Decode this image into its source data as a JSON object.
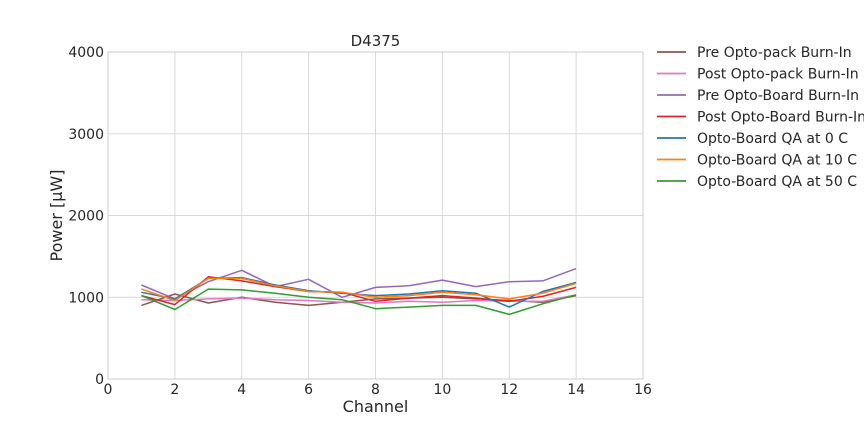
{
  "chart_data": {
    "type": "line",
    "title": "D4375",
    "xlabel": "Channel",
    "ylabel": "Power [μW]",
    "xlim": [
      0,
      16
    ],
    "ylim": [
      0,
      4000
    ],
    "xticks": [
      "0",
      "2",
      "4",
      "6",
      "8",
      "10",
      "12",
      "14",
      "16"
    ],
    "yticks": [
      "0",
      "1000",
      "2000",
      "3000",
      "4000"
    ],
    "grid": true,
    "legend": "outside-right",
    "x": [
      1,
      2,
      3,
      4,
      5,
      6,
      7,
      8,
      9,
      10,
      11,
      12,
      13,
      14
    ],
    "series": [
      {
        "name": "Pre Opto-pack Burn-In",
        "color": "#8c564b",
        "values": [
          900,
          1040,
          930,
          1000,
          940,
          900,
          940,
          980,
          990,
          1000,
          980,
          960,
          940,
          1020
        ]
      },
      {
        "name": "Post Opto-pack Burn-In",
        "color": "#e377c2",
        "values": [
          970,
          960,
          980,
          990,
          970,
          960,
          940,
          930,
          950,
          940,
          960,
          950,
          950,
          1030
        ]
      },
      {
        "name": "Pre Opto-Board Burn-In",
        "color": "#9467bd",
        "values": [
          1150,
          980,
          1190,
          1330,
          1130,
          1220,
          1000,
          1120,
          1140,
          1210,
          1130,
          1190,
          1200,
          1350
        ]
      },
      {
        "name": "Post Opto-Board Burn-In",
        "color": "#d62728",
        "values": [
          1020,
          910,
          1250,
          1200,
          1130,
          1070,
          1060,
          950,
          990,
          1020,
          990,
          950,
          1010,
          1120
        ]
      },
      {
        "name": "Opto-Board QA at 0 C",
        "color": "#1f77b4",
        "values": [
          1060,
          980,
          1230,
          1240,
          1150,
          1080,
          1050,
          1020,
          1040,
          1080,
          1050,
          880,
          1070,
          1180
        ]
      },
      {
        "name": "Opto-Board QA at 10 C",
        "color": "#ff7f0e",
        "values": [
          1100,
          960,
          1230,
          1230,
          1140,
          1070,
          1060,
          1000,
          1020,
          1060,
          1030,
          980,
          1050,
          1170
        ]
      },
      {
        "name": "Opto-Board QA at 50 C",
        "color": "#2ca02c",
        "values": [
          1020,
          850,
          1100,
          1090,
          1050,
          1000,
          970,
          860,
          880,
          900,
          900,
          790,
          920,
          1030
        ]
      }
    ]
  }
}
